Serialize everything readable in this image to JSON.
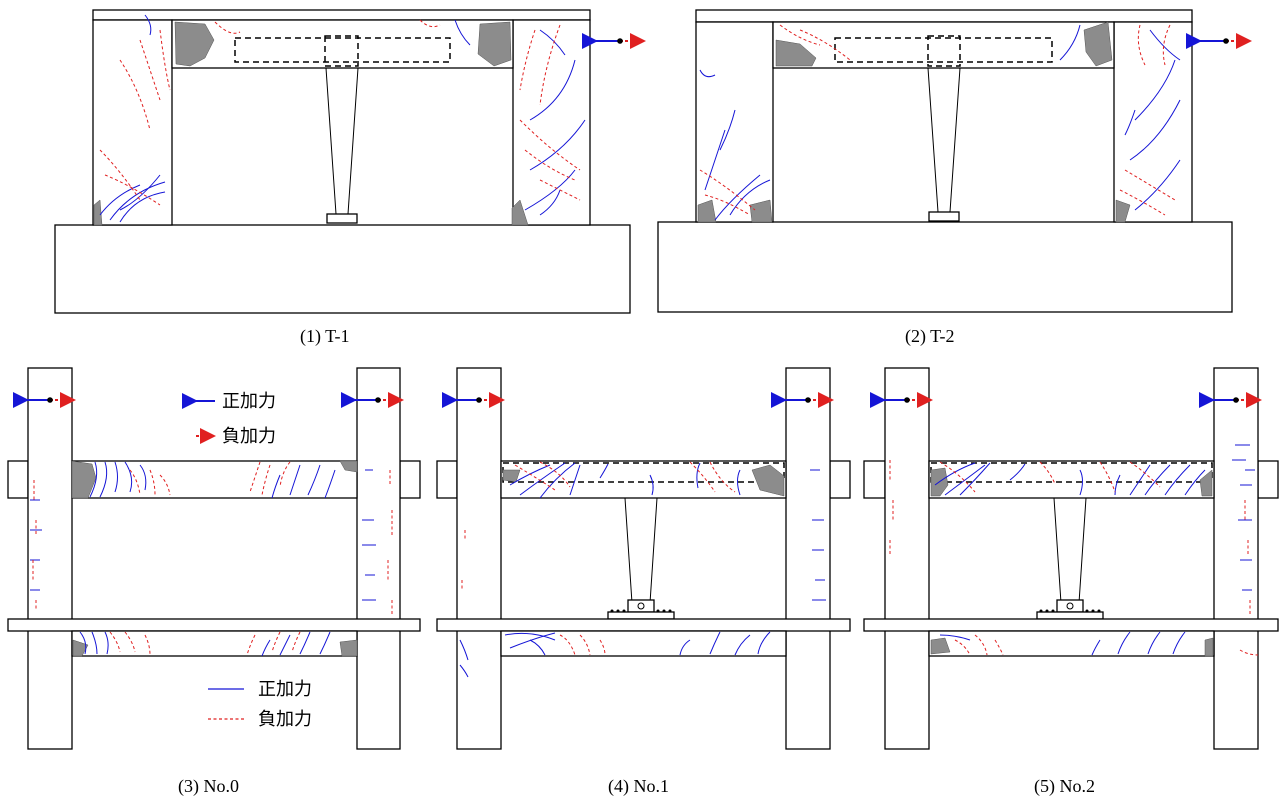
{
  "figure": {
    "panels": [
      {
        "id": "T-1",
        "caption": "(1) T-1"
      },
      {
        "id": "T-2",
        "caption": "(2) T-2"
      },
      {
        "id": "No.0",
        "caption": "(3) No.0"
      },
      {
        "id": "No.1",
        "caption": "(4) No.1"
      },
      {
        "id": "No.2",
        "caption": "(5) No.2"
      }
    ],
    "legend": {
      "arrows": {
        "positive": "正加力",
        "negative": "負加力"
      },
      "lines": {
        "positive": "正加力",
        "negative": "負加力"
      }
    },
    "colors": {
      "positive": "#1515d6",
      "negative": "#e02020",
      "spalling": "#8c8c8c",
      "outline": "#000000"
    }
  }
}
